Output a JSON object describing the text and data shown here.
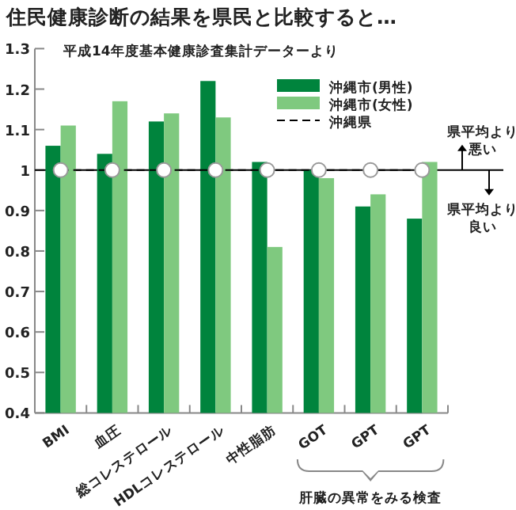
{
  "chart_data": {
    "type": "bar",
    "title": "住民健康診断の結果を県民と比較すると…",
    "subtitle": "平成14年度基本健康診査集計データーより",
    "categories": [
      "BMI",
      "血圧",
      "総コレステロール",
      "HDLコレステロール",
      "中性脂肪",
      "GOT",
      "GPT",
      "GPT"
    ],
    "series": [
      {
        "name": "沖縄市(男性)",
        "color": "#00843d",
        "values": [
          1.06,
          1.04,
          1.12,
          1.22,
          1.02,
          1.0,
          0.91,
          0.88
        ]
      },
      {
        "name": "沖縄市(女性)",
        "color": "#7fc97f",
        "values": [
          1.11,
          1.17,
          1.14,
          1.13,
          0.81,
          0.98,
          0.94,
          1.02
        ]
      },
      {
        "name": "沖縄県",
        "type": "line",
        "color": "#000000",
        "marker": "circle",
        "line_style": "dashed",
        "values": [
          1,
          1,
          1,
          1,
          1,
          1,
          1,
          1
        ]
      }
    ],
    "ylim": [
      0.4,
      1.3
    ],
    "yticks": [
      0.4,
      0.5,
      0.6,
      0.7,
      0.8,
      0.9,
      1,
      1.1,
      1.2,
      1.3
    ],
    "ref_lines": [
      {
        "axis": "y",
        "value": 1
      }
    ],
    "annotations": [
      "県平均より悪い",
      "県平均より良い",
      "肝臓の異常をみる検査"
    ],
    "legend": "top right",
    "grid": false
  }
}
